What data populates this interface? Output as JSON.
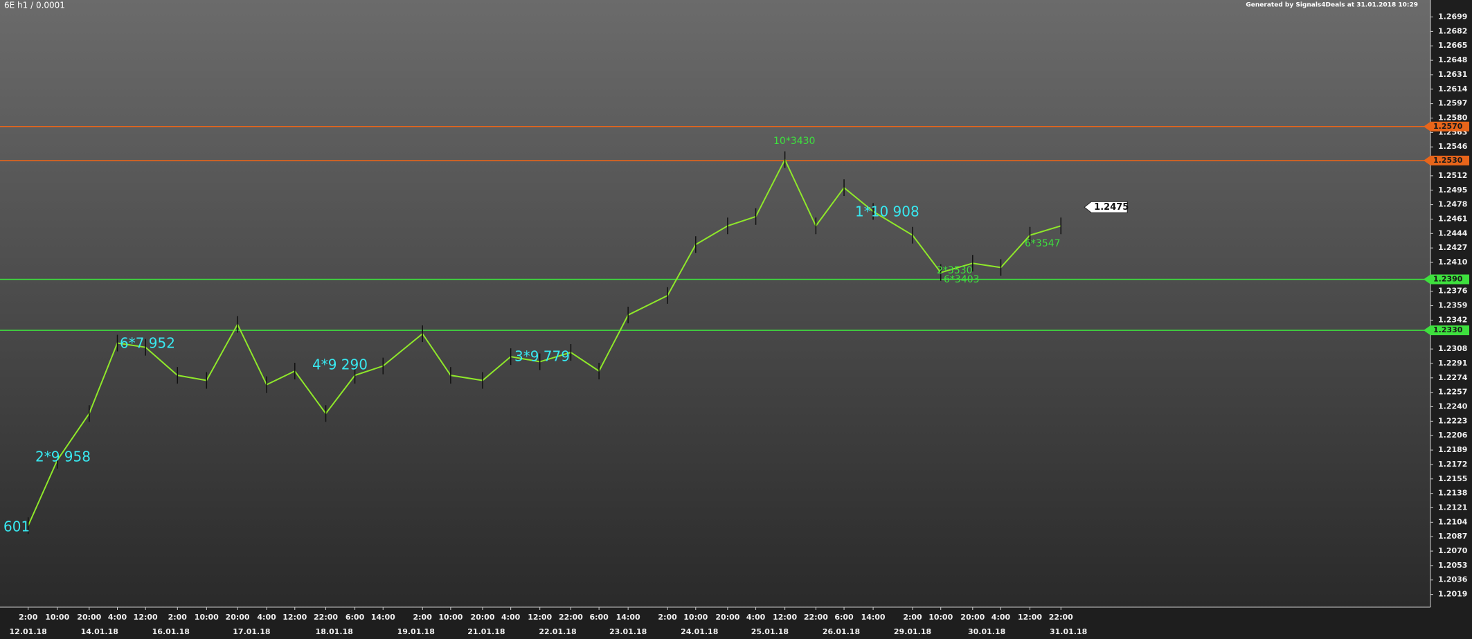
{
  "chart_data": {
    "type": "line",
    "title": "6E h1 / 0.0001",
    "subtitle": "Generated by Signals4Deals at 31.01.2018 10:29",
    "color": "#8fe82a",
    "categories": [
      "2:00",
      "10:00",
      "20:00",
      "4:00",
      "12:00",
      "2:00",
      "10:00",
      "20:00",
      "4:00",
      "12:00",
      "22:00",
      "6:00",
      "14:00",
      "2:00",
      "10:00",
      "20:00",
      "4:00",
      "12:00",
      "22:00",
      "6:00",
      "14:00",
      "2:00",
      "10:00",
      "20:00",
      "4:00",
      "12:00",
      "22:00",
      "6:00",
      "14:00",
      "2:00",
      "10:00",
      "20:00",
      "4:00",
      "12:00",
      "22:00"
    ],
    "dates": [
      "12.01.18",
      "14.01.18",
      "16.01.18",
      "17.01.18",
      "18.01.18",
      "19.01.18",
      "21.01.18",
      "22.01.18",
      "23.01.18",
      "24.01.18",
      "25.01.18",
      "26.01.18",
      "29.01.18",
      "30.01.18",
      "31.01.18"
    ],
    "values": [
      1.21,
      1.2177,
      1.2232,
      1.2315,
      1.231,
      1.2277,
      1.2271,
      1.2337,
      1.2266,
      1.2282,
      1.2232,
      1.2277,
      1.2288,
      1.2326,
      1.2277,
      1.2271,
      1.2299,
      1.2293,
      1.2304,
      1.2282,
      1.2348,
      1.2371,
      1.2431,
      1.2453,
      1.2464,
      1.2531,
      1.2453,
      1.2498,
      1.247,
      1.2442,
      1.2398,
      1.2409,
      1.2404,
      1.2442,
      1.2453
    ],
    "ylim": [
      1.2004,
      1.2719
    ],
    "yticks": [
      1.2019,
      1.2036,
      1.2053,
      {
        "value": 1.207,
        "label": "1.2070"
      },
      1.2087,
      1.2104,
      1.2121,
      1.2138,
      1.2155,
      1.2172,
      1.2189,
      1.2206,
      1.2223,
      {
        "value": 1.224,
        "label": "1.2240"
      },
      1.2257,
      1.2274,
      1.2291,
      1.2308,
      1.2342,
      1.2359,
      1.2376,
      {
        "value": 1.241,
        "label": "1.2410"
      },
      1.2427,
      1.2444,
      1.2461,
      1.2478,
      1.2495,
      1.2512,
      1.2546,
      1.2563,
      {
        "value": 1.258,
        "label": "1.2580"
      },
      1.2597,
      1.2614,
      1.2631,
      1.2648,
      1.2665,
      1.2682,
      1.2699
    ],
    "levels": [
      {
        "value": 1.257,
        "label": "1.2570",
        "color": "#e8651a"
      },
      {
        "value": 1.253,
        "label": "1.2530",
        "color": "#e8651a"
      },
      {
        "value": 1.239,
        "label": "1.2390",
        "color": "#3ee03e"
      },
      {
        "value": 1.233,
        "label": "1.2330",
        "color": "#3ee03e"
      }
    ],
    "last_price": {
      "value": 1.2475,
      "label": "1.2475"
    },
    "annotations": [
      {
        "text": "601",
        "color": "#38e8f0"
      },
      {
        "text": "2*9 958",
        "color": "#38e8f0"
      },
      {
        "text": "6*7 952",
        "color": "#38e8f0"
      },
      {
        "text": "4*9 290",
        "color": "#38e8f0"
      },
      {
        "text": "3*9 779",
        "color": "#38e8f0"
      },
      {
        "text": "10*3430",
        "color": "#3ee03e"
      },
      {
        "text": "1*10 908",
        "color": "#38e8f0"
      },
      {
        "text": "6*3547",
        "color": "#3ee03e"
      },
      {
        "text": "2*3530",
        "color": "#3ee03e"
      },
      {
        "text": "6*3403",
        "color": "#3ee03e"
      }
    ]
  }
}
